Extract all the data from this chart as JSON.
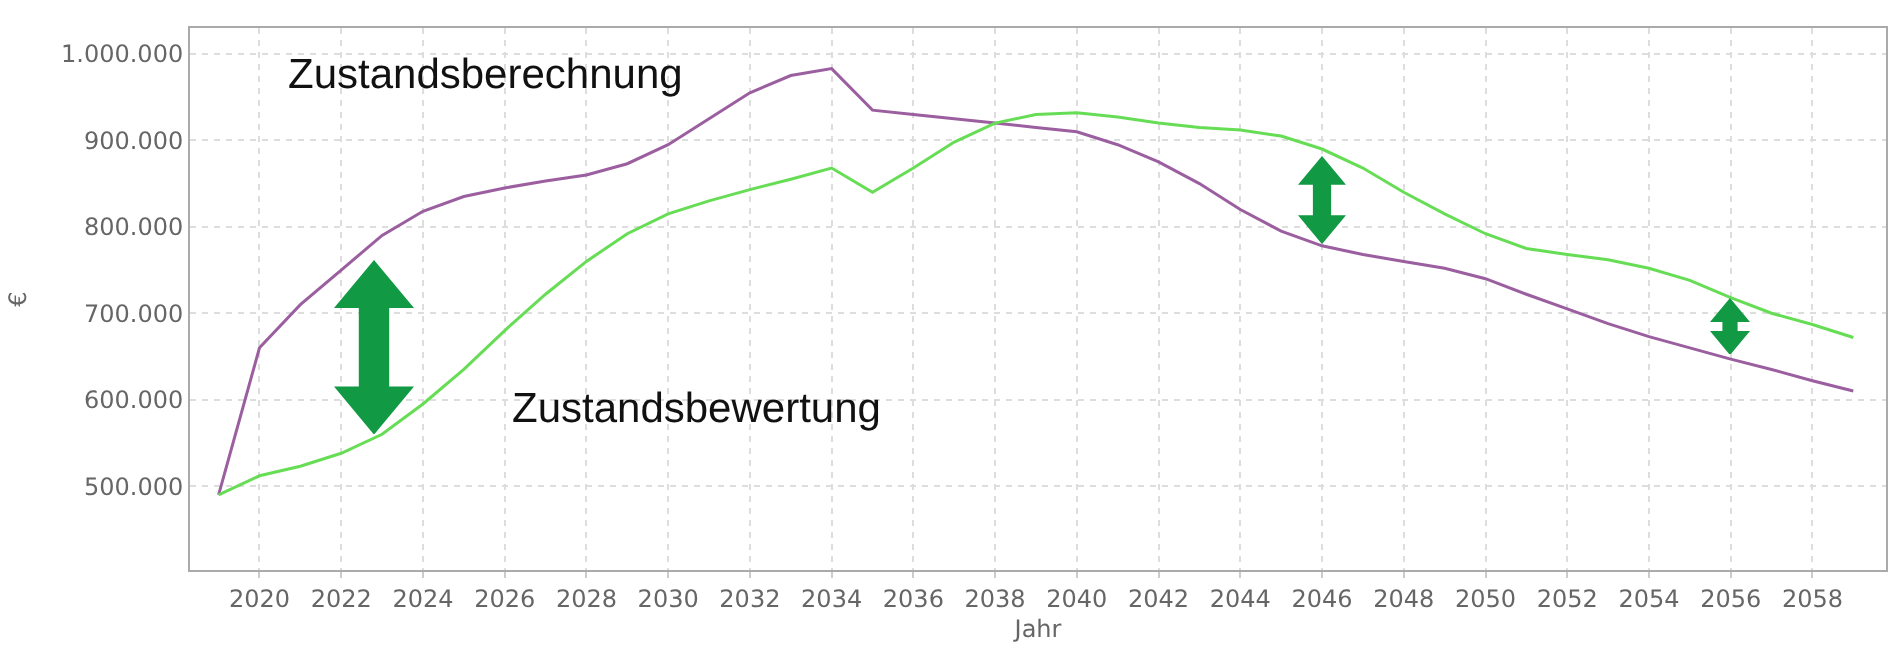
{
  "chart_data": {
    "type": "line",
    "xlabel": "Jahr",
    "ylabel": "€",
    "x": [
      2019,
      2020,
      2021,
      2022,
      2023,
      2024,
      2025,
      2026,
      2027,
      2028,
      2029,
      2030,
      2031,
      2032,
      2033,
      2034,
      2035,
      2036,
      2037,
      2038,
      2039,
      2040,
      2041,
      2042,
      2043,
      2044,
      2045,
      2046,
      2047,
      2048,
      2049,
      2050,
      2051,
      2052,
      2053,
      2054,
      2055,
      2056,
      2057,
      2058,
      2059
    ],
    "series": [
      {
        "name": "Zustandsberechnung",
        "color": "#9b5fa0",
        "values": [
          490000,
          660000,
          710000,
          750000,
          790000,
          818000,
          835000,
          845000,
          853000,
          860000,
          873000,
          895000,
          925000,
          955000,
          975000,
          983000,
          935000,
          930000,
          925000,
          920000,
          915000,
          910000,
          895000,
          875000,
          850000,
          820000,
          795000,
          778000,
          768000,
          760000,
          752000,
          740000,
          722000,
          705000,
          688000,
          673000,
          660000,
          647000,
          635000,
          622000,
          610000
        ]
      },
      {
        "name": "Zustandsbewertung",
        "color": "#66dd55",
        "values": [
          490000,
          512000,
          523000,
          538000,
          560000,
          595000,
          635000,
          680000,
          722000,
          760000,
          792000,
          815000,
          830000,
          843000,
          855000,
          868000,
          840000,
          868000,
          898000,
          920000,
          930000,
          932000,
          927000,
          920000,
          915000,
          912000,
          905000,
          890000,
          868000,
          840000,
          815000,
          792000,
          775000,
          768000,
          762000,
          752000,
          738000,
          718000,
          700000,
          687000,
          672000
        ]
      }
    ],
    "xlim": [
      2018.3,
      2059.8
    ],
    "xticks": [
      2020,
      2022,
      2024,
      2026,
      2028,
      2030,
      2032,
      2034,
      2036,
      2038,
      2040,
      2042,
      2044,
      2046,
      2048,
      2050,
      2052,
      2054,
      2056,
      2058
    ],
    "ylim": [
      403000,
      1030000
    ],
    "yticks": [
      {
        "value": 500000,
        "label": "500.000"
      },
      {
        "value": 600000,
        "label": "600.000"
      },
      {
        "value": 700000,
        "label": "700.000"
      },
      {
        "value": 800000,
        "label": "800.000"
      },
      {
        "value": 900000,
        "label": "900.000"
      },
      {
        "value": 1000000,
        "label": "1.000.000"
      }
    ],
    "grid": true,
    "legend": false,
    "marker": "none",
    "line_style": "solid"
  }
}
